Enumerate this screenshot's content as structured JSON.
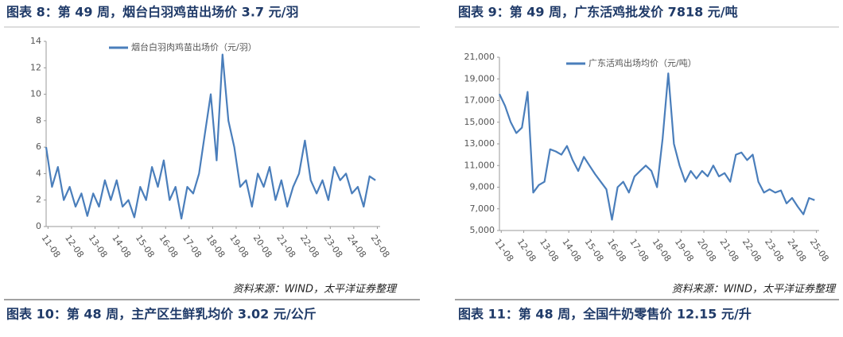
{
  "chart_data": [
    {
      "type": "line",
      "title": "图表 8：第 49 周，烟台白羽鸡苗出场价 3.7 元/羽",
      "x": [
        2011.5,
        2011.75,
        2012,
        2012.25,
        2012.5,
        2012.75,
        2013,
        2013.25,
        2013.5,
        2013.75,
        2014,
        2014.25,
        2014.5,
        2014.75,
        2015,
        2015.25,
        2015.5,
        2015.75,
        2016,
        2016.25,
        2016.5,
        2016.75,
        2017,
        2017.25,
        2017.5,
        2017.75,
        2018,
        2018.25,
        2018.5,
        2018.75,
        2019,
        2019.25,
        2019.5,
        2019.75,
        2020,
        2020.25,
        2020.5,
        2020.75,
        2021,
        2021.25,
        2021.5,
        2021.75,
        2022,
        2022.25,
        2022.5,
        2022.75,
        2023,
        2023.25,
        2023.5,
        2023.75,
        2024,
        2024.25,
        2024.5,
        2024.75,
        2025,
        2025.25,
        2025.5
      ],
      "series": [
        {
          "name": "烟台白羽肉鸡苗出场价（元/羽）",
          "color": "#4a7ebb",
          "values": [
            6,
            3,
            4.5,
            2,
            3,
            1.5,
            2.5,
            0.8,
            2.5,
            1.5,
            3.5,
            2,
            3.5,
            1.5,
            2,
            0.7,
            3,
            2,
            4.5,
            3,
            5,
            2,
            3,
            0.6,
            3,
            2.5,
            4,
            7,
            10,
            5,
            13,
            8,
            6,
            3,
            3.5,
            1.5,
            4,
            3,
            4.5,
            2,
            3.5,
            1.5,
            3,
            4,
            6.5,
            3.5,
            2.5,
            3.5,
            2,
            4.5,
            3.5,
            4,
            2.5,
            3,
            1.5,
            3.8,
            3.5
          ]
        }
      ],
      "xlim": [
        2011.5,
        2025.7
      ],
      "xticks": [
        {
          "value": 2011.58,
          "label": "11-08"
        },
        {
          "value": 2012.58,
          "label": "12-08"
        },
        {
          "value": 2013.58,
          "label": "13-08"
        },
        {
          "value": 2014.58,
          "label": "14-08"
        },
        {
          "value": 2015.58,
          "label": "15-08"
        },
        {
          "value": 2016.58,
          "label": "16-08"
        },
        {
          "value": 2017.58,
          "label": "17-08"
        },
        {
          "value": 2018.58,
          "label": "18-08"
        },
        {
          "value": 2019.58,
          "label": "19-08"
        },
        {
          "value": 2020.58,
          "label": "20-08"
        },
        {
          "value": 2021.58,
          "label": "21-08"
        },
        {
          "value": 2022.58,
          "label": "22-08"
        },
        {
          "value": 2023.58,
          "label": "23-08"
        },
        {
          "value": 2024.58,
          "label": "24-08"
        },
        {
          "value": 2025.58,
          "label": "25-08"
        }
      ],
      "ylim": [
        0,
        14
      ],
      "yticks": [
        0,
        2,
        4,
        6,
        8,
        10,
        12,
        14
      ],
      "source": "资料来源：WIND，太平洋证券整理"
    },
    {
      "type": "line",
      "title": "图表 9：第 49 周，广东活鸡批发价 7818 元/吨",
      "x": [
        2011.5,
        2011.75,
        2012,
        2012.25,
        2012.5,
        2012.75,
        2013,
        2013.25,
        2013.5,
        2013.75,
        2014,
        2014.25,
        2014.5,
        2014.75,
        2015,
        2015.25,
        2015.5,
        2015.75,
        2016,
        2016.25,
        2016.5,
        2016.75,
        2017,
        2017.25,
        2017.5,
        2017.75,
        2018,
        2018.25,
        2018.5,
        2018.75,
        2019,
        2019.25,
        2019.5,
        2019.75,
        2020,
        2020.25,
        2020.5,
        2020.75,
        2021,
        2021.25,
        2021.5,
        2021.75,
        2022,
        2022.25,
        2022.5,
        2022.75,
        2023,
        2023.25,
        2023.5,
        2023.75,
        2024,
        2024.25,
        2024.5,
        2024.75,
        2025,
        2025.25,
        2025.5
      ],
      "series": [
        {
          "name": "广东活鸡出场均价（元/吨）",
          "color": "#4a7ebb",
          "values": [
            17600,
            16500,
            15000,
            14000,
            14500,
            17800,
            8500,
            9200,
            9500,
            12500,
            12300,
            12000,
            12800,
            11500,
            10500,
            11800,
            11000,
            10200,
            9500,
            8800,
            6000,
            9000,
            9500,
            8500,
            10000,
            10500,
            11000,
            10500,
            9000,
            13500,
            19500,
            13000,
            11000,
            9500,
            10500,
            9800,
            10500,
            10000,
            11000,
            10000,
            10300,
            9500,
            12000,
            12200,
            11500,
            12000,
            9500,
            8500,
            8800,
            8500,
            8700,
            7500,
            8000,
            7200,
            6500,
            8000,
            7800
          ]
        }
      ],
      "xlim": [
        2011.5,
        2025.7
      ],
      "xticks": [
        {
          "value": 2011.58,
          "label": "11-08"
        },
        {
          "value": 2012.58,
          "label": "12-08"
        },
        {
          "value": 2013.58,
          "label": "13-08"
        },
        {
          "value": 2014.58,
          "label": "14-08"
        },
        {
          "value": 2015.58,
          "label": "15-08"
        },
        {
          "value": 2016.58,
          "label": "16-08"
        },
        {
          "value": 2017.58,
          "label": "17-08"
        },
        {
          "value": 2018.58,
          "label": "18-08"
        },
        {
          "value": 2019.58,
          "label": "19-08"
        },
        {
          "value": 2020.58,
          "label": "20-08"
        },
        {
          "value": 2021.58,
          "label": "21-08"
        },
        {
          "value": 2022.58,
          "label": "22-08"
        },
        {
          "value": 2023.58,
          "label": "23-08"
        },
        {
          "value": 2024.58,
          "label": "24-08"
        },
        {
          "value": 2025.58,
          "label": "25-08"
        }
      ],
      "ylim": [
        5000,
        21000
      ],
      "yticks": [
        {
          "value": 5000,
          "label": "5,000"
        },
        {
          "value": 7000,
          "label": "7,000"
        },
        {
          "value": 9000,
          "label": "9,000"
        },
        {
          "value": 11000,
          "label": "11,000"
        },
        {
          "value": 13000,
          "label": "13,000"
        },
        {
          "value": 15000,
          "label": "15,000"
        },
        {
          "value": 17000,
          "label": "17,000"
        },
        {
          "value": 19000,
          "label": "19,000"
        },
        {
          "value": 21000,
          "label": "21,000"
        }
      ],
      "source": "资料来源：WIND，太平洋证券整理"
    }
  ],
  "next_titles": [
    "图表 10：第 48 周，主产区生鲜乳均价 3.02 元/公斤",
    "图表 11：第 48 周，全国牛奶零售价 12.15 元/升"
  ]
}
